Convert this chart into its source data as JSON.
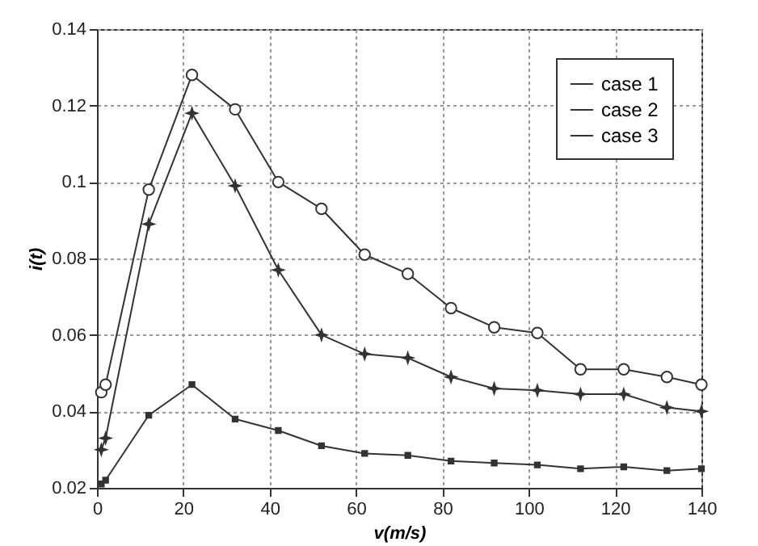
{
  "chart_data": {
    "type": "line",
    "xlabel": "v(m/s)",
    "ylabel": "i(t)",
    "xlim": [
      0,
      140
    ],
    "xticks": [
      0,
      20,
      40,
      60,
      80,
      100,
      120,
      140
    ],
    "ylim": [
      0.02,
      0.14
    ],
    "yticks": [
      0.02,
      0.04,
      0.06,
      0.08,
      {
        "value": 0.1,
        "label": "0.1"
      },
      0.12,
      0.14
    ],
    "grid": true,
    "legend": "top right",
    "x": [
      1,
      2,
      12,
      22,
      32,
      42,
      52,
      62,
      72,
      82,
      92,
      102,
      112,
      122,
      132,
      140
    ],
    "series": [
      {
        "name": "case 1",
        "color": "#333333",
        "marker": "star",
        "values": [
          0.03,
          0.033,
          0.089,
          0.118,
          0.099,
          0.077,
          0.06,
          0.055,
          0.054,
          0.049,
          0.046,
          0.0455,
          0.0445,
          0.0445,
          0.041,
          0.04
        ]
      },
      {
        "name": "case 2",
        "color": "#333333",
        "marker": "square",
        "values": [
          0.021,
          0.022,
          0.039,
          0.047,
          0.038,
          0.035,
          0.031,
          0.029,
          0.0285,
          0.027,
          0.0265,
          0.026,
          0.025,
          0.0255,
          0.0245,
          0.025
        ]
      },
      {
        "name": "case 3",
        "color": "#333333",
        "marker": "circle",
        "values": [
          0.045,
          0.047,
          0.098,
          0.128,
          0.119,
          0.1,
          0.093,
          0.081,
          0.076,
          0.067,
          0.062,
          0.0605,
          0.051,
          0.051,
          0.049,
          0.047
        ]
      }
    ]
  }
}
